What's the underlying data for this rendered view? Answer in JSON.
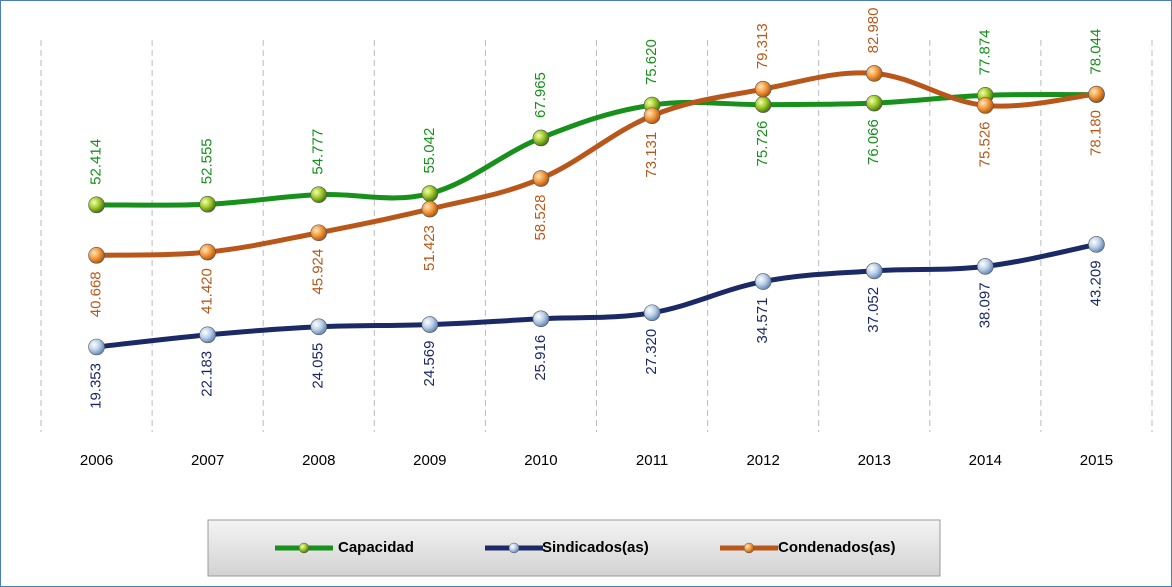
{
  "chart_data": {
    "type": "line",
    "categories": [
      "2006",
      "2007",
      "2008",
      "2009",
      "2010",
      "2011",
      "2012",
      "2013",
      "2014",
      "2015"
    ],
    "series": [
      {
        "name": "Capacidad",
        "color": "#17911c",
        "values": [
          52414,
          52555,
          54777,
          55042,
          67965,
          75620,
          75726,
          76066,
          77874,
          78044
        ],
        "value_labels": [
          "52.414",
          "52.555",
          "54.777",
          "55.042",
          "67.965",
          "75.620",
          "75.726",
          "76.066",
          "77.874",
          "78.044"
        ]
      },
      {
        "name": "Sindicados(as)",
        "color": "#1b2a66",
        "values": [
          19353,
          22183,
          24055,
          24569,
          25916,
          27320,
          34571,
          37052,
          38097,
          43209
        ],
        "value_labels": [
          "19.353",
          "22.183",
          "24.055",
          "24.569",
          "25.916",
          "27.320",
          "34.571",
          "37.052",
          "38.097",
          "43.209"
        ]
      },
      {
        "name": "Condenados(as)",
        "color": "#b9571b",
        "values": [
          40668,
          41420,
          45924,
          51423,
          58528,
          73131,
          79313,
          82980,
          75526,
          78180
        ],
        "value_labels": [
          "40.668",
          "41.420",
          "45.924",
          "51.423",
          "58.528",
          "73.131",
          "79.313",
          "82.980",
          "75.526",
          "78.180"
        ]
      }
    ]
  }
}
